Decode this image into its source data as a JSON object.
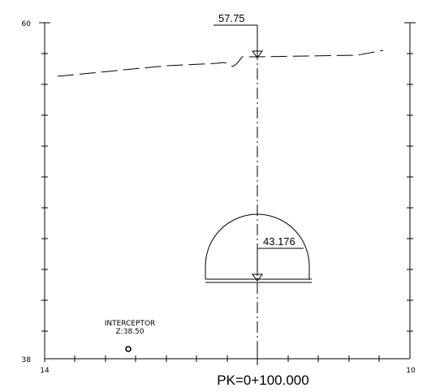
{
  "axes": {
    "y_top": "60",
    "y_bottom": "38",
    "x_left": "14",
    "x_right": "10"
  },
  "surface": {
    "elevation_label": "57.75"
  },
  "tunnel": {
    "crown_label": "43.176"
  },
  "interceptor": {
    "name": "INTERCEPTOR",
    "elevation": "Z:38.50"
  },
  "station": {
    "label": "PK=0+100.000"
  },
  "colors": {
    "lines": "#000000",
    "background": "#ffffff"
  }
}
